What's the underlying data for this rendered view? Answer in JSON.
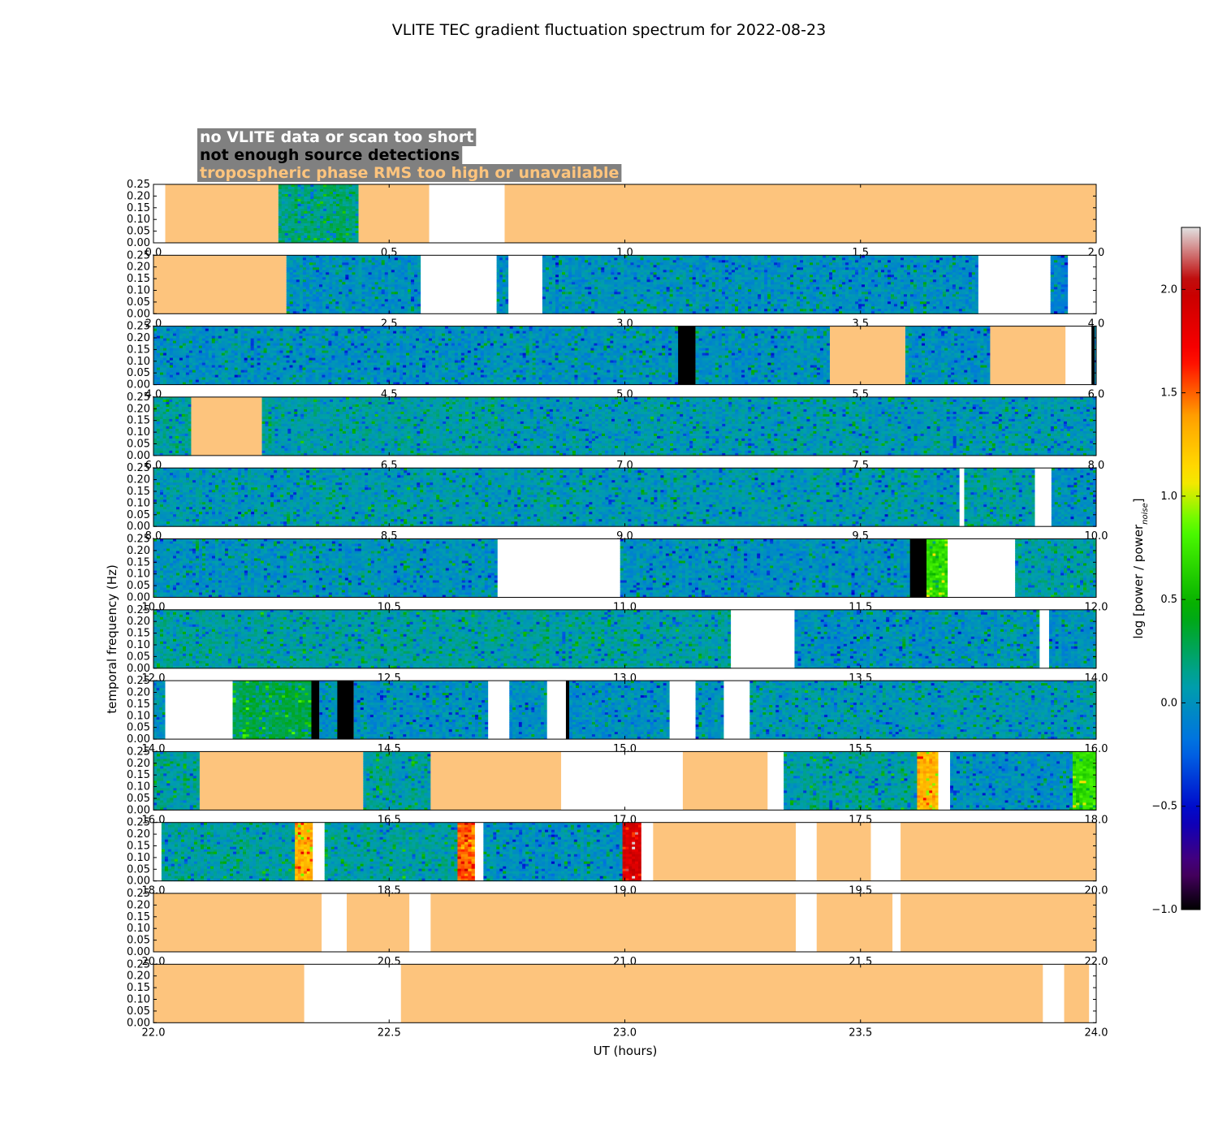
{
  "chart_data": {
    "type": "heatmap",
    "title": "VLITE TEC gradient fluctuation spectrum for 2022-08-23",
    "xlabel": "UT (hours)",
    "ylabel": "temporal frequency (Hz)",
    "colorbar_label": "log [power / power",
    "colorbar_label_sub": "noise",
    "colorbar_label_end": "]",
    "colorbar_range": [
      -1.0,
      2.3
    ],
    "colorbar_ticks": [
      "-1.0",
      "-0.5",
      "0.0",
      "0.5",
      "1.0",
      "1.5",
      "2.0"
    ],
    "y_ticks": [
      "0.00",
      "0.05",
      "0.10",
      "0.15",
      "0.20",
      "0.25"
    ],
    "ylim": [
      0,
      0.25
    ],
    "legend": [
      {
        "label": "no VLITE data or scan too short",
        "color": "#ffffff"
      },
      {
        "label": "not enough source detections",
        "color": "#000000"
      },
      {
        "label": "tropospheric phase RMS too high or unavailable",
        "color": "#fdc47d"
      }
    ],
    "flag_colors": {
      "nodata": "#ffffff",
      "lowdet": "#000000",
      "tropo": "#fdc47d"
    },
    "panels": [
      {
        "start": 0,
        "ticks": [
          "0.0",
          "0.5",
          "1.0",
          "1.5",
          "2.0"
        ],
        "segments": [
          [
            "nodata",
            0.0,
            0.025
          ],
          [
            "tropo",
            0.025,
            0.265
          ],
          [
            "data",
            0.265,
            0.435,
            0.2
          ],
          [
            "tropo",
            0.435,
            0.585
          ],
          [
            "nodata",
            0.585,
            0.745
          ],
          [
            "tropo",
            0.745,
            2.0
          ]
        ]
      },
      {
        "start": 2,
        "ticks": [
          "2.0",
          "2.5",
          "3.0",
          "3.5",
          "4.0"
        ],
        "segments": [
          [
            "tropo",
            2.0,
            2.282
          ],
          [
            "data",
            2.282,
            2.567,
            0.0
          ],
          [
            "nodata",
            2.567,
            2.728
          ],
          [
            "data",
            2.728,
            2.753,
            0.0
          ],
          [
            "nodata",
            2.753,
            2.825
          ],
          [
            "data",
            2.825,
            3.275,
            0.0
          ],
          [
            "data",
            3.275,
            3.75,
            0.0
          ],
          [
            "nodata",
            3.75,
            3.903
          ],
          [
            "data",
            3.903,
            3.94,
            -0.1
          ],
          [
            "nodata",
            3.94,
            4.0
          ]
        ]
      },
      {
        "start": 4,
        "ticks": [
          "4.0",
          "4.5",
          "5.0",
          "5.5",
          "6.0"
        ],
        "segments": [
          [
            "data",
            4.0,
            5.113,
            0.0
          ],
          [
            "lowdet",
            5.113,
            5.15
          ],
          [
            "data",
            5.15,
            5.435,
            0.0
          ],
          [
            "tropo",
            5.435,
            5.595
          ],
          [
            "data",
            5.595,
            5.775,
            0.0
          ],
          [
            "tropo",
            5.775,
            5.935
          ],
          [
            "nodata",
            5.935,
            5.99
          ],
          [
            "lowdet",
            5.99,
            5.997
          ],
          [
            "data",
            5.997,
            6.0,
            0.0
          ]
        ]
      },
      {
        "start": 6,
        "ticks": [
          "6.0",
          "6.5",
          "7.0",
          "7.5",
          "8.0"
        ],
        "segments": [
          [
            "data",
            6.0,
            6.08,
            0.1
          ],
          [
            "tropo",
            6.08,
            6.23
          ],
          [
            "data",
            6.23,
            6.73,
            0.1
          ],
          [
            "data",
            6.73,
            8.0,
            0.05
          ]
        ]
      },
      {
        "start": 8,
        "ticks": [
          "8.0",
          "8.5",
          "9.0",
          "9.5",
          "10.0"
        ],
        "segments": [
          [
            "data",
            8.0,
            9.71,
            0.05
          ],
          [
            "nodata",
            9.71,
            9.72
          ],
          [
            "data",
            9.72,
            9.87,
            0.1
          ],
          [
            "nodata",
            9.87,
            9.905
          ],
          [
            "data",
            9.905,
            10.0,
            0.0
          ]
        ]
      },
      {
        "start": 10,
        "ticks": [
          "10.0",
          "10.5",
          "11.0",
          "11.5",
          "12.0"
        ],
        "segments": [
          [
            "data",
            10.0,
            10.73,
            0.0
          ],
          [
            "nodata",
            10.73,
            10.99
          ],
          [
            "data",
            10.99,
            11.605,
            0.0
          ],
          [
            "lowdet",
            11.605,
            11.64
          ],
          [
            "data",
            11.64,
            11.685,
            0.7
          ],
          [
            "nodata",
            11.685,
            11.828
          ],
          [
            "data",
            11.828,
            12.0,
            0.1
          ]
        ]
      },
      {
        "start": 12,
        "ticks": [
          "12.0",
          "12.5",
          "13.0",
          "13.5",
          "14.0"
        ],
        "segments": [
          [
            "data",
            12.0,
            13.225,
            0.1
          ],
          [
            "nodata",
            13.225,
            13.36
          ],
          [
            "data",
            13.36,
            13.88,
            0.0
          ],
          [
            "nodata",
            13.88,
            13.9
          ],
          [
            "data",
            13.9,
            14.0,
            0.0
          ]
        ]
      },
      {
        "start": 14,
        "ticks": [
          "14.0",
          "14.5",
          "15.0",
          "15.5",
          "16.0"
        ],
        "segments": [
          [
            "data",
            14.0,
            14.025,
            0.0
          ],
          [
            "nodata",
            14.025,
            14.168
          ],
          [
            "data",
            14.168,
            14.335,
            0.3
          ],
          [
            "lowdet",
            14.335,
            14.352
          ],
          [
            "data",
            14.352,
            14.39,
            0.0
          ],
          [
            "lowdet",
            14.39,
            14.425
          ],
          [
            "data",
            14.425,
            14.71,
            0.0
          ],
          [
            "nodata",
            14.71,
            14.755
          ],
          [
            "data",
            14.755,
            14.835,
            0.0
          ],
          [
            "nodata",
            14.835,
            14.875
          ],
          [
            "lowdet",
            14.875,
            14.882
          ],
          [
            "data",
            14.882,
            15.095,
            0.0
          ],
          [
            "nodata",
            15.095,
            15.15
          ],
          [
            "data",
            15.15,
            15.21,
            0.0
          ],
          [
            "nodata",
            15.21,
            15.265
          ],
          [
            "data",
            15.265,
            16.0,
            0.05
          ]
        ]
      },
      {
        "start": 16,
        "ticks": [
          "16.0",
          "16.5",
          "17.0",
          "17.5",
          "18.0"
        ],
        "segments": [
          [
            "data",
            16.0,
            16.098,
            0.1
          ],
          [
            "tropo",
            16.098,
            16.445
          ],
          [
            "data",
            16.445,
            16.588,
            0.1
          ],
          [
            "tropo",
            16.588,
            16.865
          ],
          [
            "nodata",
            16.865,
            17.123
          ],
          [
            "tropo",
            17.123,
            17.303
          ],
          [
            "nodata",
            17.303,
            17.337
          ],
          [
            "data",
            17.337,
            17.62,
            0.1
          ],
          [
            "data",
            17.62,
            17.665,
            1.3
          ],
          [
            "nodata",
            17.665,
            17.69
          ],
          [
            "data",
            17.69,
            17.95,
            0.0
          ],
          [
            "data",
            17.95,
            18.0,
            0.7
          ]
        ]
      },
      {
        "start": 18,
        "ticks": [
          "18.0",
          "18.5",
          "19.0",
          "19.5",
          "20.0"
        ],
        "segments": [
          [
            "nodata",
            18.0,
            18.017
          ],
          [
            "data",
            18.017,
            18.3,
            0.1
          ],
          [
            "data",
            18.3,
            18.338,
            1.3
          ],
          [
            "nodata",
            18.338,
            18.363
          ],
          [
            "data",
            18.363,
            18.645,
            0.1
          ],
          [
            "data",
            18.645,
            18.682,
            1.5
          ],
          [
            "nodata",
            18.682,
            18.7
          ],
          [
            "data",
            18.7,
            18.995,
            0.0
          ],
          [
            "data",
            18.995,
            19.035,
            1.9
          ],
          [
            "nodata",
            19.035,
            19.06
          ],
          [
            "tropo",
            19.06,
            19.363
          ],
          [
            "nodata",
            19.363,
            19.407
          ],
          [
            "tropo",
            19.407,
            19.522
          ],
          [
            "nodata",
            19.522,
            19.585
          ],
          [
            "tropo",
            19.585,
            20.0
          ]
        ]
      },
      {
        "start": 20,
        "ticks": [
          "20.0",
          "20.5",
          "21.0",
          "21.5",
          "22.0"
        ],
        "segments": [
          [
            "tropo",
            20.0,
            20.357
          ],
          [
            "nodata",
            20.357,
            20.41
          ],
          [
            "tropo",
            20.41,
            20.543
          ],
          [
            "nodata",
            20.543,
            20.588
          ],
          [
            "tropo",
            20.588,
            21.363
          ],
          [
            "nodata",
            21.363,
            21.407
          ],
          [
            "tropo",
            21.407,
            21.568
          ],
          [
            "nodata",
            21.568,
            21.585
          ],
          [
            "tropo",
            21.585,
            22.0
          ]
        ]
      },
      {
        "start": 22,
        "ticks": [
          "22.0",
          "22.5",
          "23.0",
          "23.5",
          "24.0"
        ],
        "segments": [
          [
            "tropo",
            22.0,
            22.32
          ],
          [
            "nodata",
            22.32,
            22.525
          ],
          [
            "tropo",
            22.525,
            23.887
          ],
          [
            "nodata",
            23.887,
            23.932
          ],
          [
            "tropo",
            23.932,
            23.985
          ],
          [
            "nodata",
            23.985,
            24.0
          ]
        ]
      }
    ]
  }
}
